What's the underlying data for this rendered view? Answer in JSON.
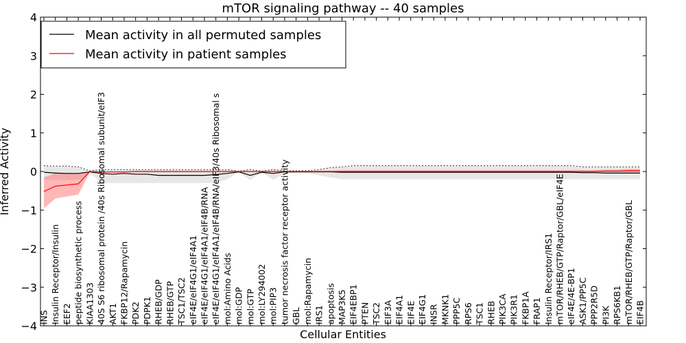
{
  "chart_data": {
    "type": "line",
    "title": "mTOR signaling pathway -- 40 samples",
    "xlabel": "Cellular Entities",
    "ylabel": "Inferred Activity",
    "ylim": [
      -4,
      4
    ],
    "yticks": [
      -4,
      -3,
      -2,
      -1,
      0,
      1,
      2,
      3,
      4
    ],
    "grid": false,
    "legend_position": "top-left",
    "categories": [
      "INS",
      "Insulin Receptor/Insulin",
      "EEF2",
      "peptide biosynthetic process",
      "KIAA1303",
      "40S S6 ribosomal protein /40s Ribosomal subunit/eIF3",
      "AKT1",
      "FKBP12/Rapamycin",
      "PDK2",
      "PDPK1",
      "RHEB/GDP",
      "RHEB/GTP",
      "TSC1/TSC2",
      "eIF4E/eIF4G1/eIF4A1",
      "eIF4E/eIF4G1/eIF4A1/eIF4B/RNA",
      "eIF4E/eIF4G1/eIF4A1/eIF4B/RNA/eIF3/40s Ribosomal s",
      "mol:Amino Acids",
      "mol:GDP",
      "mol:GTP",
      "mol:LY294002",
      "mol:PIP3",
      "tumor necrosis factor receptor activity",
      "GBL",
      "mol:Rapamycin",
      "IRS1",
      "apoptosis",
      "MAP3K5",
      "EIF4EBP1",
      "PTEN",
      "TSC2",
      "EIF3A",
      "EIF4A1",
      "EIF4E",
      "EIF4G1",
      "INSR",
      "MKNK1",
      "PPP5C",
      "RPS6",
      "TSC1",
      "RHEB",
      "PIK3CA",
      "PIK3R1",
      "FKBP1A",
      "FRAP1",
      "Insulin Receptor/IRS1",
      "mTOR/RHEB/GTP/Raptor/GBL/eIF4E",
      "eIF4E/4E-BP1",
      "ASK1/PP5C",
      "PPP2R5D",
      "PI3K",
      "RPS6KB1",
      "mTOR/RHEB/GTP/Raptor/GBL",
      "EIF4B"
    ],
    "series": [
      {
        "name": "Mean activity in all permuted samples",
        "color": "#000000",
        "values": [
          -0.02,
          -0.04,
          -0.05,
          -0.05,
          -0.01,
          -0.05,
          -0.07,
          -0.05,
          -0.07,
          -0.07,
          -0.1,
          -0.1,
          -0.1,
          -0.1,
          -0.1,
          -0.08,
          -0.05,
          -0.01,
          -0.1,
          -0.02,
          -0.05,
          -0.01,
          -0.01,
          -0.01,
          -0.01,
          -0.01,
          -0.02,
          -0.02,
          -0.02,
          -0.02,
          -0.02,
          -0.02,
          -0.02,
          -0.02,
          -0.02,
          -0.02,
          -0.02,
          -0.02,
          -0.02,
          -0.02,
          -0.02,
          -0.02,
          -0.02,
          -0.02,
          -0.02,
          -0.02,
          -0.02,
          -0.03,
          -0.03,
          -0.04,
          -0.04,
          -0.04,
          -0.04
        ],
        "band_upper": [
          0.15,
          0.14,
          0.14,
          0.12,
          0.02,
          0.05,
          0.05,
          0.05,
          0.05,
          0.05,
          0.05,
          0.05,
          0.05,
          0.05,
          0.05,
          0.05,
          0.05,
          0.01,
          0.05,
          0.01,
          0.05,
          0.02,
          0.02,
          0.02,
          0.05,
          0.1,
          0.12,
          0.15,
          0.15,
          0.15,
          0.15,
          0.15,
          0.15,
          0.15,
          0.15,
          0.15,
          0.15,
          0.15,
          0.15,
          0.15,
          0.15,
          0.15,
          0.15,
          0.15,
          0.15,
          0.15,
          0.15,
          0.12,
          0.12,
          0.12,
          0.12,
          0.12,
          0.12
        ],
        "band_lower": [
          -0.2,
          -0.22,
          -0.22,
          -0.22,
          -0.02,
          -0.3,
          -0.3,
          -0.3,
          -0.3,
          -0.3,
          -0.3,
          -0.3,
          -0.3,
          -0.3,
          -0.3,
          -0.3,
          -0.2,
          -0.02,
          -0.22,
          -0.02,
          -0.22,
          -0.05,
          -0.05,
          -0.05,
          -0.1,
          -0.15,
          -0.2,
          -0.2,
          -0.2,
          -0.2,
          -0.2,
          -0.2,
          -0.2,
          -0.2,
          -0.2,
          -0.2,
          -0.2,
          -0.2,
          -0.2,
          -0.2,
          -0.2,
          -0.2,
          -0.2,
          -0.2,
          -0.2,
          -0.2,
          -0.2,
          -0.2,
          -0.2,
          -0.2,
          -0.2,
          -0.2,
          -0.2
        ]
      },
      {
        "name": "Mean activity in patient samples",
        "color": "#ff0000",
        "values": [
          -0.52,
          -0.38,
          -0.35,
          -0.32,
          0.0,
          -0.01,
          -0.01,
          -0.01,
          0.0,
          0.0,
          0.0,
          0.0,
          0.0,
          0.0,
          0.0,
          0.0,
          0.0,
          0.0,
          0.0,
          0.0,
          0.0,
          0.0,
          0.0,
          0.0,
          0.0,
          0.0,
          0.0,
          0.0,
          0.0,
          0.0,
          0.0,
          0.0,
          0.0,
          0.0,
          0.0,
          0.0,
          0.0,
          0.0,
          0.0,
          0.0,
          0.0,
          0.0,
          0.0,
          0.0,
          0.0,
          0.0,
          0.0,
          0.0,
          0.0,
          0.01,
          0.01,
          0.02,
          0.02
        ],
        "band_upper": [
          -0.15,
          -0.05,
          -0.05,
          -0.05,
          0.0,
          0.0,
          0.0,
          0.0,
          0.0,
          0.0,
          0.0,
          0.0,
          0.0,
          0.0,
          0.0,
          0.0,
          0.0,
          0.0,
          0.0,
          0.0,
          0.0,
          0.0,
          0.0,
          0.0,
          0.02,
          0.02,
          0.03,
          0.03,
          0.03,
          0.03,
          0.03,
          0.03,
          0.03,
          0.03,
          0.03,
          0.03,
          0.03,
          0.03,
          0.03,
          0.03,
          0.03,
          0.03,
          0.03,
          0.03,
          0.03,
          0.03,
          0.03,
          0.03,
          0.03,
          0.05,
          0.05,
          0.06,
          0.06
        ],
        "band_lower": [
          -0.95,
          -0.7,
          -0.65,
          -0.6,
          -0.02,
          -0.03,
          -0.03,
          -0.03,
          -0.02,
          -0.02,
          -0.02,
          -0.02,
          -0.02,
          -0.02,
          -0.02,
          -0.02,
          -0.02,
          -0.02,
          -0.02,
          -0.02,
          -0.02,
          -0.02,
          -0.02,
          -0.02,
          -0.02,
          -0.02,
          -0.02,
          -0.02,
          -0.02,
          -0.02,
          -0.02,
          -0.02,
          -0.02,
          -0.02,
          -0.02,
          -0.02,
          -0.02,
          -0.02,
          -0.02,
          -0.02,
          -0.02,
          -0.02,
          -0.02,
          -0.02,
          -0.02,
          -0.02,
          -0.02,
          -0.02,
          -0.02,
          -0.02,
          -0.02,
          -0.02,
          -0.02
        ]
      }
    ]
  }
}
